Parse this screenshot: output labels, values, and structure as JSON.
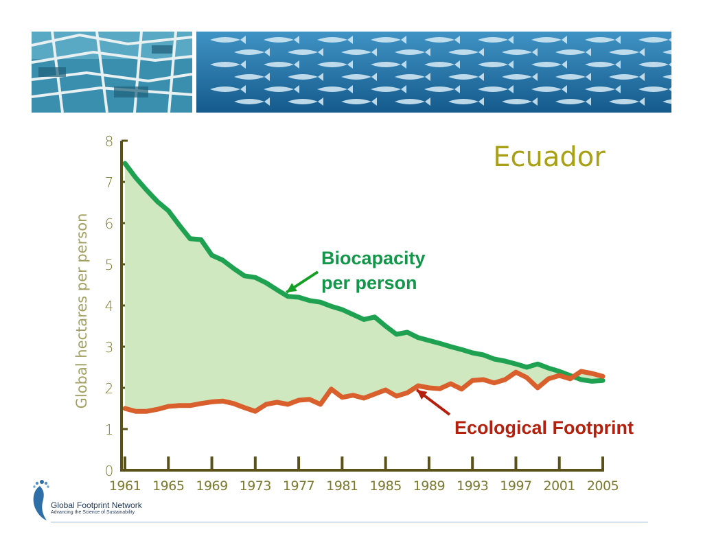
{
  "colors": {
    "biocapacity": "#1ea252",
    "footprint": "#d9602c",
    "fill": "#cfe8c0",
    "axis": "#5a5218",
    "tick_text": "#7b7a30",
    "title": "#a8a015"
  },
  "icons": {
    "banner_left": "boats-photo",
    "banner_right": "fish-school-photo",
    "logo": "footprint-logo-icon"
  },
  "logo": {
    "name": "Global Footprint Network",
    "tagline": "Advancing the Science of Sustainability"
  },
  "chart_data": {
    "type": "line",
    "title": "Ecuador",
    "ylabel": "Global hectares per person",
    "xlabel": "",
    "ylim": [
      0,
      8
    ],
    "xlim": [
      1961,
      2005
    ],
    "y_ticks": [
      0,
      1,
      2,
      3,
      4,
      5,
      6,
      7,
      8
    ],
    "x_ticks": [
      1961,
      1965,
      1969,
      1973,
      1977,
      1981,
      1985,
      1989,
      1993,
      1997,
      2001,
      2005
    ],
    "grid": false,
    "fill_between": true,
    "x": [
      1961,
      1962,
      1963,
      1964,
      1965,
      1966,
      1967,
      1968,
      1969,
      1970,
      1971,
      1972,
      1973,
      1974,
      1975,
      1976,
      1977,
      1978,
      1979,
      1980,
      1981,
      1982,
      1983,
      1984,
      1985,
      1986,
      1987,
      1988,
      1989,
      1990,
      1991,
      1992,
      1993,
      1994,
      1995,
      1996,
      1997,
      1998,
      1999,
      2000,
      2001,
      2002,
      2003,
      2004,
      2005
    ],
    "series": [
      {
        "name": "Biocapacity per person",
        "values": [
          7.45,
          7.1,
          6.8,
          6.52,
          6.3,
          5.95,
          5.62,
          5.6,
          5.22,
          5.1,
          4.9,
          4.72,
          4.68,
          4.55,
          4.38,
          4.22,
          4.2,
          4.12,
          4.08,
          3.98,
          3.9,
          3.78,
          3.66,
          3.72,
          3.5,
          3.3,
          3.35,
          3.22,
          3.15,
          3.08,
          3.0,
          2.93,
          2.85,
          2.8,
          2.7,
          2.65,
          2.58,
          2.5,
          2.58,
          2.48,
          2.4,
          2.3,
          2.2,
          2.16,
          2.18
        ]
      },
      {
        "name": "Ecological Footprint",
        "values": [
          1.5,
          1.43,
          1.43,
          1.48,
          1.55,
          1.57,
          1.57,
          1.62,
          1.66,
          1.68,
          1.62,
          1.52,
          1.43,
          1.6,
          1.65,
          1.6,
          1.7,
          1.72,
          1.6,
          1.97,
          1.77,
          1.82,
          1.75,
          1.85,
          1.95,
          1.8,
          1.88,
          2.05,
          2.0,
          1.98,
          2.1,
          1.97,
          2.18,
          2.2,
          2.12,
          2.2,
          2.38,
          2.25,
          2.0,
          2.22,
          2.3,
          2.22,
          2.4,
          2.35,
          2.28
        ]
      }
    ],
    "annotations": [
      {
        "text": [
          "Biocapacity",
          "per person"
        ],
        "series": "Biocapacity per person",
        "points_to_year": 1976
      },
      {
        "text": [
          "Ecological Footprint"
        ],
        "series": "Ecological Footprint",
        "points_to_year": 1988
      }
    ]
  }
}
